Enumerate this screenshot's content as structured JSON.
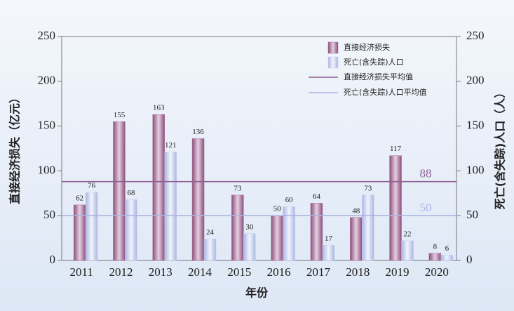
{
  "chart_data": {
    "type": "bar",
    "categories": [
      "2011",
      "2012",
      "2013",
      "2014",
      "2015",
      "2016",
      "2017",
      "2018",
      "2019",
      "2020"
    ],
    "series": [
      {
        "name": "直接经济损失",
        "color": "#a8719a",
        "values": [
          62,
          155,
          163,
          136,
          73,
          50,
          64,
          48,
          117,
          8
        ]
      },
      {
        "name": "死亡(含失踪)人口",
        "color": "#c8d0ee",
        "axis": "y2",
        "values": [
          76,
          68,
          121,
          24,
          30,
          60,
          17,
          73,
          22,
          6
        ]
      }
    ],
    "average_lines": [
      {
        "name": "直接经济损失平均值",
        "value": 88,
        "color": "#8e5f94"
      },
      {
        "name": "死亡(含失踪)人口平均值",
        "value": 50,
        "color": "#a9b4e4",
        "axis": "y2"
      }
    ],
    "xlabel": "年份",
    "ylabel": "直接经济损失（亿元）",
    "y2label": "死亡(含失踪)人口（人）",
    "ylim": [
      0,
      250
    ],
    "yticks": [
      0,
      50,
      100,
      150,
      200,
      250
    ],
    "y2lim": [
      0,
      250
    ],
    "y2ticks": [
      0,
      50,
      100,
      150,
      200,
      250
    ]
  }
}
